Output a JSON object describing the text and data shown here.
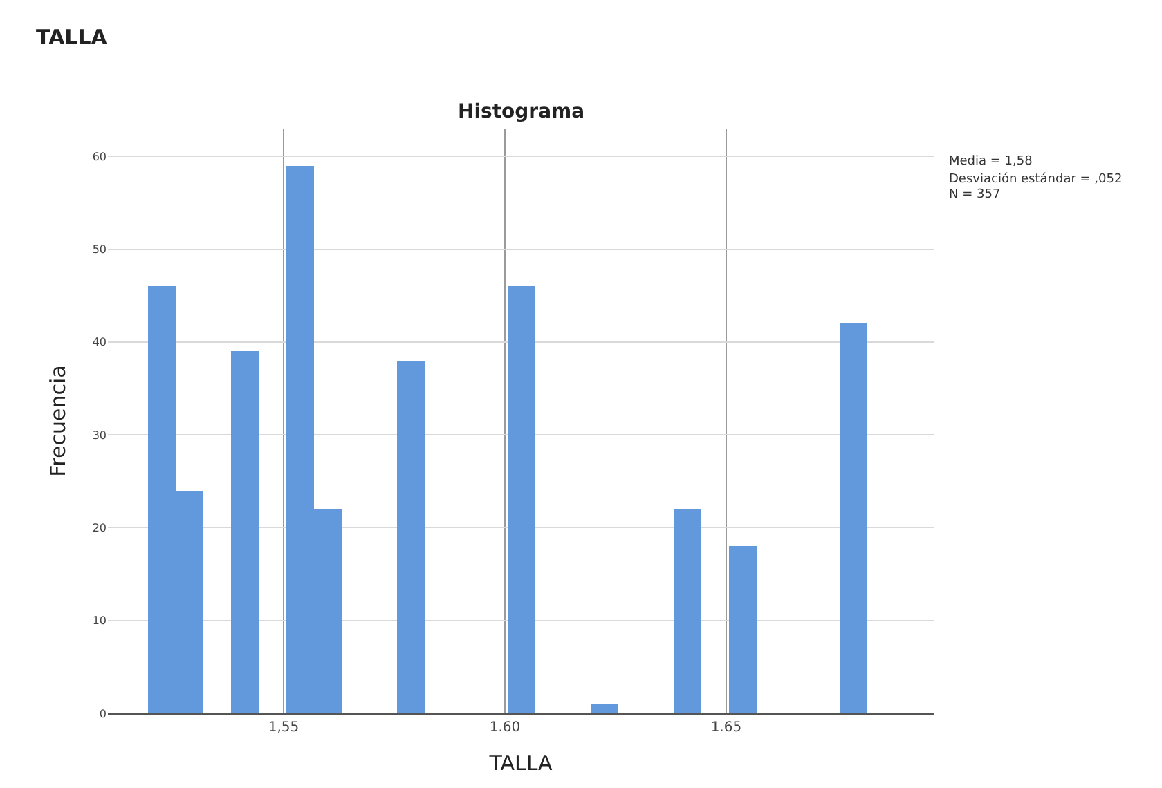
{
  "chart_data": {
    "type": "histogram",
    "title": "TALLA",
    "subtitle": "Histograma",
    "xlabel": "TALLA",
    "ylabel": "Frecuencia",
    "bins": [
      1.5194,
      1.5256,
      1.5319,
      1.5381,
      1.5444,
      1.5506,
      1.5569,
      1.5631,
      1.5756,
      1.5819,
      1.6006,
      1.6069,
      1.6194,
      1.6256,
      1.6381,
      1.6444,
      1.6506,
      1.6569,
      1.6756,
      1.6819
    ],
    "values": [
      46,
      24,
      0,
      39,
      0,
      59,
      22,
      0,
      38,
      0,
      46,
      0,
      1,
      0,
      22,
      0,
      18,
      0,
      42
    ],
    "color": "#6199dc",
    "xlim": [
      1.5103,
      1.6969
    ],
    "xticks": [
      {
        "value": 1.55,
        "label": "1,55"
      },
      {
        "value": 1.6,
        "label": "1.60"
      },
      {
        "value": 1.65,
        "label": "1.65"
      }
    ],
    "ylim": [
      0,
      63
    ],
    "yticks": [
      0,
      10,
      20,
      30,
      40,
      50,
      60
    ],
    "grid": true,
    "annotations": [
      "Media = 1,58",
      "Desviación estándar = ,052",
      "N = 357"
    ]
  }
}
